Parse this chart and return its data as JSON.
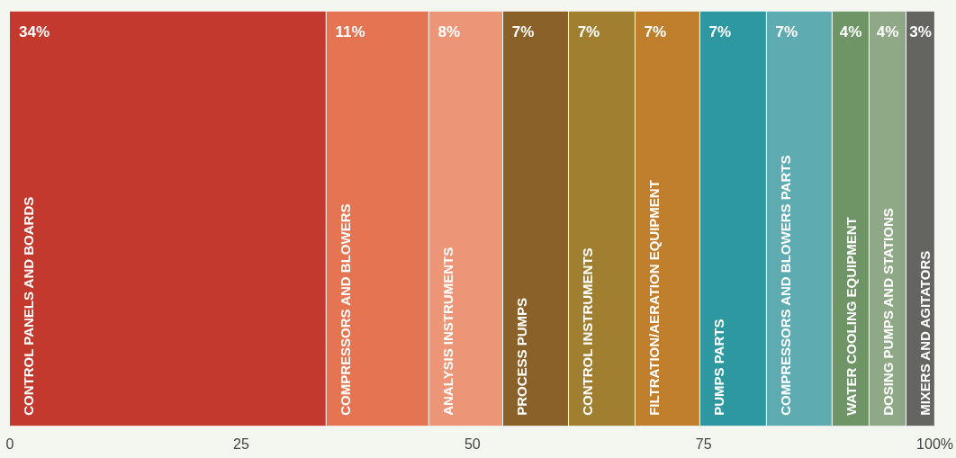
{
  "chart_data": {
    "type": "bar",
    "orientation": "horizontal",
    "stacked": true,
    "categories": [
      null
    ],
    "xlim": [
      0,
      100
    ],
    "xticks": [
      0,
      25,
      50,
      75,
      {
        "value": 100,
        "label": "100%"
      }
    ],
    "series": [
      {
        "name": "CONTROL PANELS AND BOARDS",
        "color": "#c4392d",
        "values": [
          34.2
        ],
        "value_labels": [
          "34%"
        ]
      },
      {
        "name": "COMPRESSORS AND BLOWERS",
        "color": "#e57552",
        "values": [
          11.1
        ],
        "value_labels": [
          "11%"
        ]
      },
      {
        "name": "ANALYSIS INSTRUMENTS",
        "color": "#ec9677",
        "values": [
          8
        ],
        "value_labels": [
          "8%"
        ]
      },
      {
        "name": "PROCESS PUMPS",
        "color": "#8a6128",
        "values": [
          7.1
        ],
        "value_labels": [
          "7%"
        ]
      },
      {
        "name": "CONTROL INSTRUMENTS",
        "color": "#a08030",
        "values": [
          7.2
        ],
        "value_labels": [
          "7%"
        ]
      },
      {
        "name": "FILTRATION/AERATION EQUIPMENT",
        "color": "#bf7f2d",
        "values": [
          7
        ],
        "value_labels": [
          "7%"
        ]
      },
      {
        "name": "PUMPS PARTS",
        "color": "#2e98a0",
        "values": [
          7.2
        ],
        "value_labels": [
          "7%"
        ]
      },
      {
        "name": "COMPRESSORS AND BLOWERS PARTS",
        "color": "#5eacb2",
        "values": [
          7.1
        ],
        "value_labels": [
          "7%"
        ]
      },
      {
        "name": "WATER COOLING EQUIPMENT",
        "color": "#6f9465",
        "values": [
          4
        ],
        "value_labels": [
          "4%"
        ]
      },
      {
        "name": "DOSING PUMPS AND STATIONS",
        "color": "#8fa886",
        "values": [
          4
        ],
        "value_labels": [
          "4%"
        ]
      },
      {
        "name": "MIXERS AND AGITATORS",
        "color": "#646561",
        "values": [
          3.1
        ],
        "value_labels": [
          "3%"
        ]
      }
    ]
  }
}
